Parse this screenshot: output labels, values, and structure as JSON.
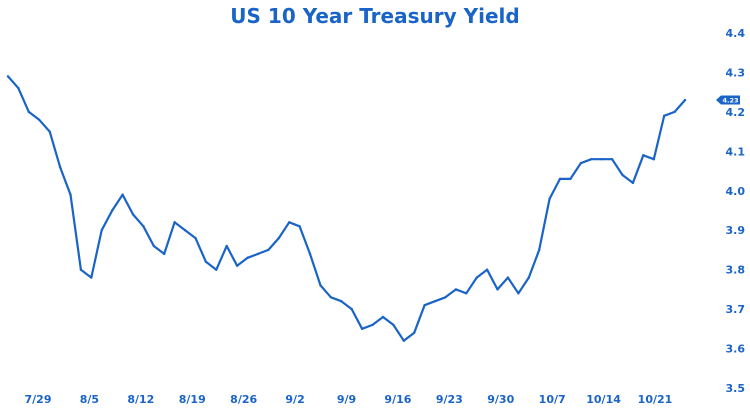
{
  "chart_data": {
    "type": "line",
    "title": "US 10 Year Treasury Yield",
    "xlabel": "",
    "ylabel": "",
    "ylim": [
      3.5,
      4.4
    ],
    "y_ticks": [
      "4.4",
      "4.3",
      "4.2",
      "4.1",
      "4.0",
      "3.9",
      "3.8",
      "3.7",
      "3.6",
      "3.5"
    ],
    "x_ticks": [
      "7/29",
      "8/5",
      "8/12",
      "8/19",
      "8/26",
      "9/2",
      "9/9",
      "9/16",
      "9/23",
      "9/30",
      "10/7",
      "10/14",
      "10/21"
    ],
    "grid": false,
    "line_color": "#1a64c8",
    "last_value_label": "4.23",
    "series": [
      {
        "values": [
          4.29,
          4.26,
          4.2,
          4.18,
          4.15,
          4.06,
          3.99,
          3.8,
          3.78,
          3.9,
          3.95,
          3.99,
          3.94,
          3.91,
          3.86,
          3.84,
          3.92,
          3.9,
          3.88,
          3.82,
          3.8,
          3.86,
          3.81,
          3.83,
          3.84,
          3.85,
          3.88,
          3.92,
          3.91,
          3.84,
          3.76,
          3.73,
          3.72,
          3.7,
          3.65,
          3.66,
          3.68,
          3.66,
          3.62,
          3.64,
          3.71,
          3.72,
          3.73,
          3.75,
          3.74,
          3.78,
          3.8,
          3.75,
          3.78,
          3.74,
          3.78,
          3.85,
          3.98,
          4.03,
          4.03,
          4.07,
          4.08,
          4.08,
          4.08,
          4.04,
          4.02,
          4.09,
          4.08,
          4.19,
          4.2,
          4.23
        ]
      }
    ]
  }
}
